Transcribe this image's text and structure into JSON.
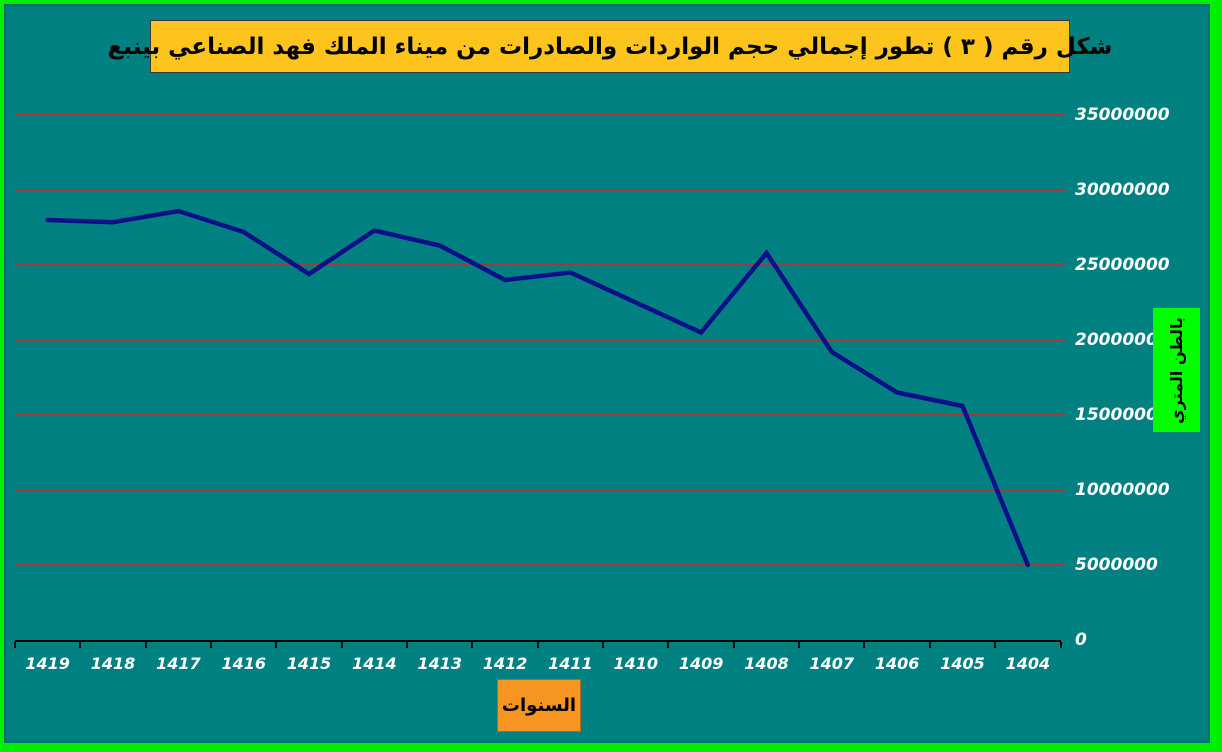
{
  "title": {
    "text": "شكل رقم ( ٣ )   تطور إجمالي  حجم الواردات والصادرات من ميناء الملك فهد الصناعي بينبع"
  },
  "axis_titles": {
    "y": "بالطن المتري",
    "x": "السنوات"
  },
  "colors": {
    "outer_border": "#00ee00",
    "background": "#008080",
    "title_bg": "#fcc41d",
    "x_title_bg": "#f79522",
    "y_title_bg": "#00ff00",
    "gridline": "#9e3a3a",
    "line": "#0c0f87",
    "tick_text": "#ffffff",
    "axis": "#000000"
  },
  "chart_data": {
    "type": "line",
    "title": "شكل رقم ( ٣ )   تطور إجمالي  حجم الواردات والصادرات من ميناء الملك فهد الصناعي بينبع",
    "categories": [
      "1419",
      "1418",
      "1417",
      "1416",
      "1415",
      "1414",
      "1413",
      "1412",
      "1411",
      "1410",
      "1409",
      "1408",
      "1407",
      "1406",
      "1405",
      "1404"
    ],
    "values": [
      28000000,
      27850000,
      28600000,
      27200000,
      24400000,
      27300000,
      26300000,
      24000000,
      24500000,
      22500000,
      20500000,
      25800000,
      19200000,
      16500000,
      15600000,
      5000000
    ],
    "series_name": "إجمالي حجم الواردات والصادرات",
    "xlabel": "السنوات",
    "ylabel": "بالطن المتري",
    "ylim": [
      0,
      35000000
    ],
    "ytick_step": 5000000,
    "yticks": [
      "0",
      "5000000",
      "10000000",
      "15000000",
      "20000000",
      "25000000",
      "30000000",
      "35000000"
    ],
    "x_axis_reversed": true,
    "grid": true,
    "legend_position": "none",
    "line_color": "#0c0f87",
    "gridline_color": "#9e3a3a"
  }
}
